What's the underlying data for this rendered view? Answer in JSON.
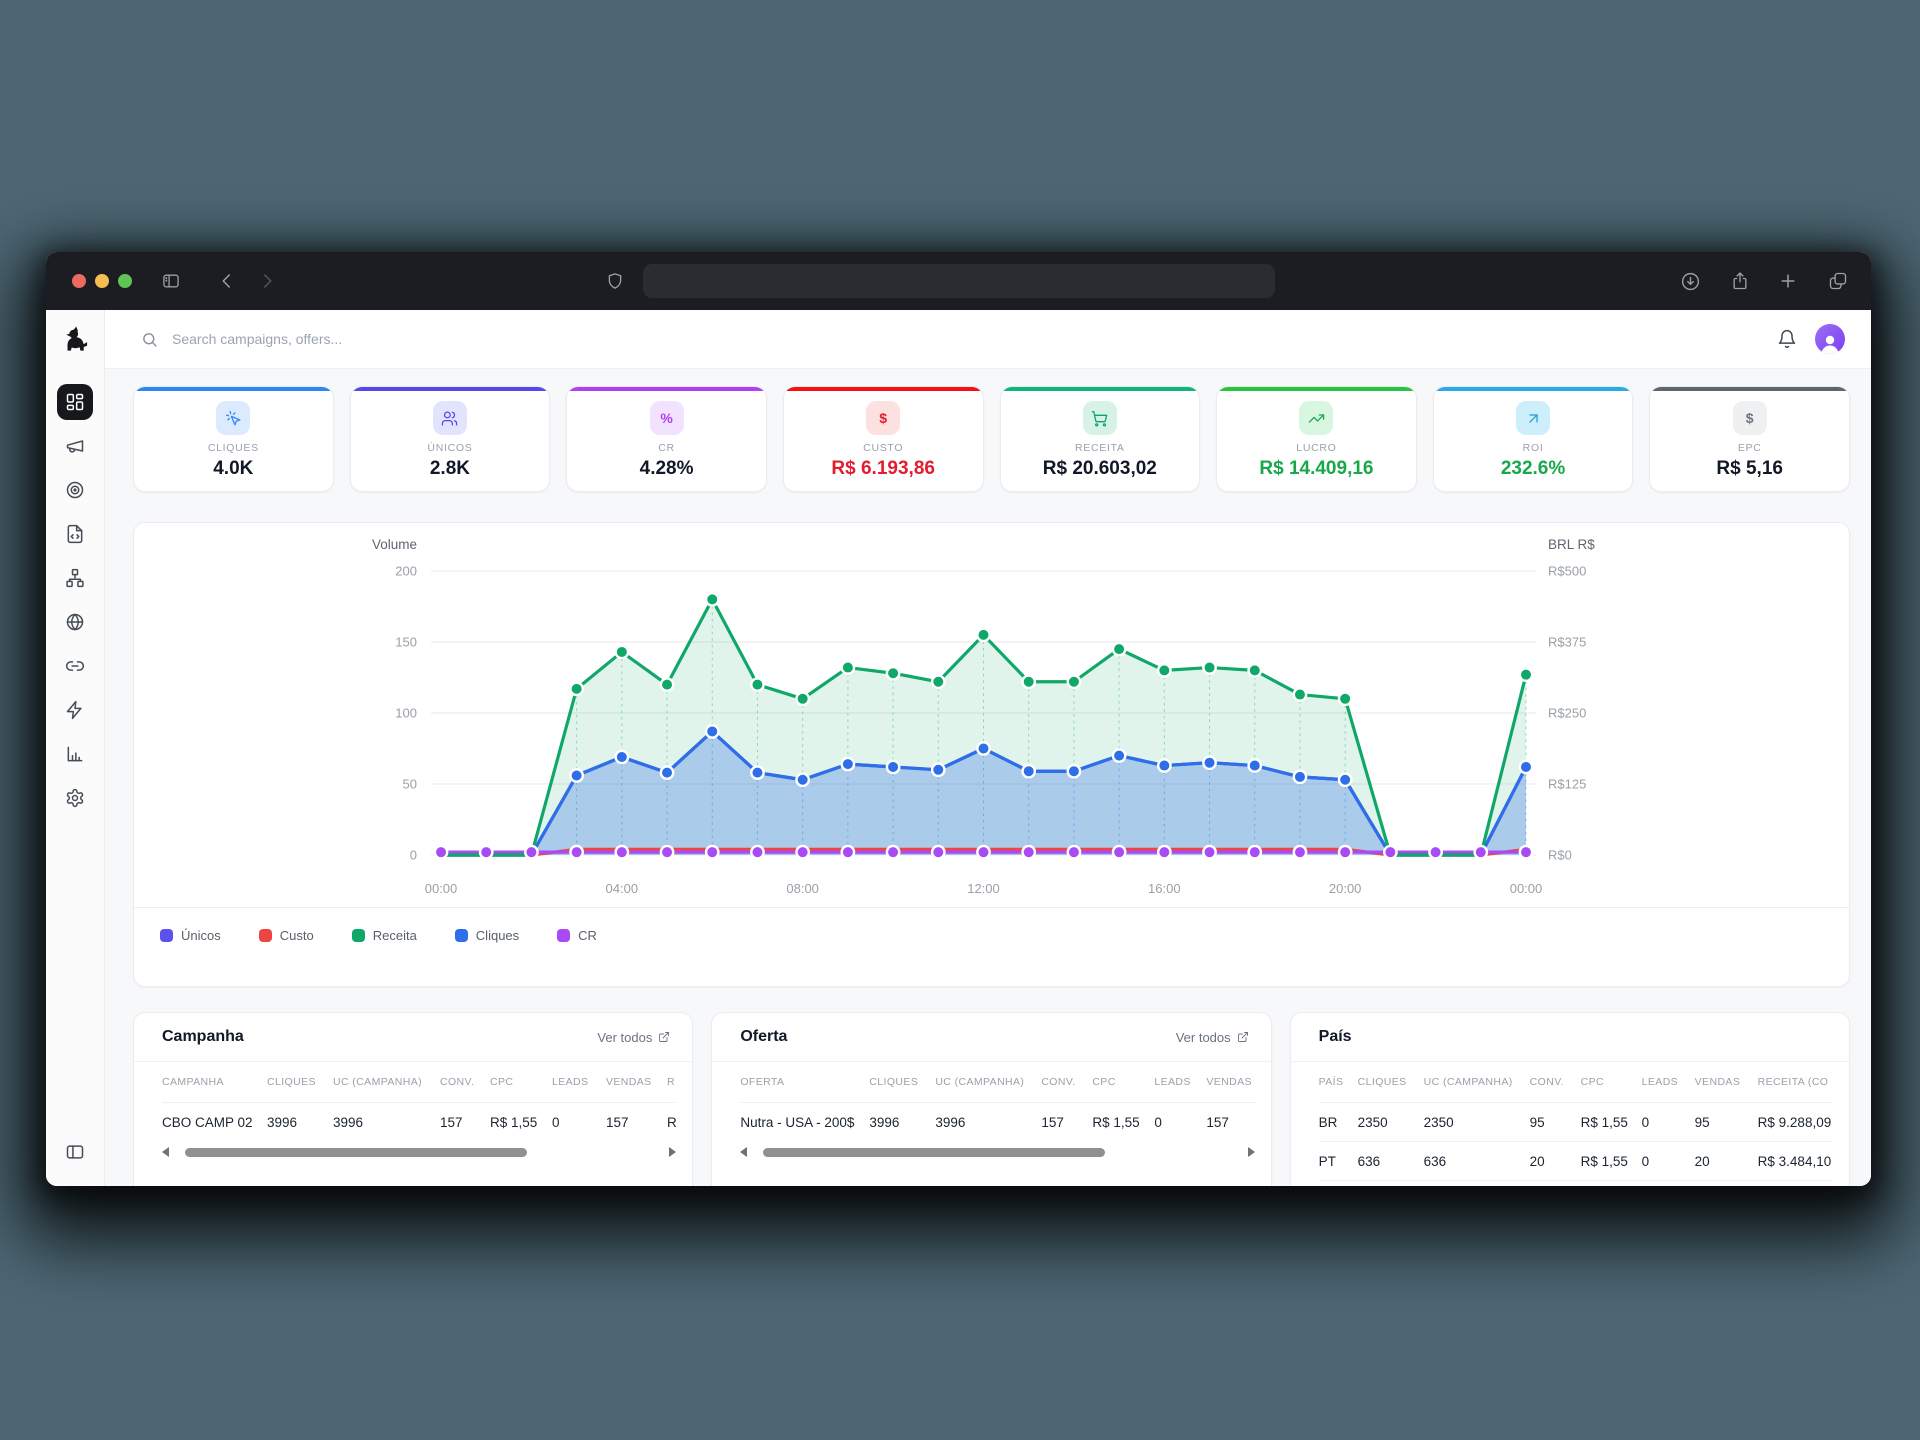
{
  "browser": {
    "traffic_lights": [
      "#ed6a5e",
      "#f4bf4f",
      "#61c555"
    ],
    "url_value": ""
  },
  "sidebar": {
    "items": [
      {
        "icon": "layout-grid",
        "active": true
      },
      {
        "icon": "megaphone",
        "active": false
      },
      {
        "icon": "target",
        "active": false
      },
      {
        "icon": "file-code",
        "active": false
      },
      {
        "icon": "network",
        "active": false
      },
      {
        "icon": "globe",
        "active": false
      },
      {
        "icon": "link",
        "active": false
      },
      {
        "icon": "zap",
        "active": false
      },
      {
        "icon": "bar-chart",
        "active": false
      },
      {
        "icon": "settings",
        "active": false
      }
    ],
    "footer_icon": "panel-left"
  },
  "topbar": {
    "search_placeholder": "Search campaigns, offers..."
  },
  "kpis": [
    {
      "label": "CLIQUES",
      "value": "4.0K",
      "accent": "#2e86f6",
      "chip_bg": "#dbeafe",
      "icon": "cursor-click",
      "icon_color": "#2e86f6",
      "value_color": "#111827"
    },
    {
      "label": "ÚNICOS",
      "value": "2.8K",
      "accent": "#5746ea",
      "chip_bg": "#e2e4fd",
      "icon": "users",
      "icon_color": "#5746ea",
      "value_color": "#111827"
    },
    {
      "label": "CR",
      "value": "4.28%",
      "accent": "#ae3ef7",
      "chip_bg": "#f2e2fe",
      "icon": "percent",
      "icon_color": "#ae3ef7",
      "value_color": "#111827"
    },
    {
      "label": "CUSTO",
      "value": "R$ 6.193,86",
      "accent": "#f31212",
      "chip_bg": "#fde1e1",
      "icon": "dollar",
      "icon_color": "#e11d2e",
      "value_color": "#e11d2e"
    },
    {
      "label": "RECEITA",
      "value": "R$ 20.603,02",
      "accent": "#0db57a",
      "chip_bg": "#d7f3e6",
      "icon": "cart",
      "icon_color": "#0aa56e",
      "value_color": "#111827"
    },
    {
      "label": "LUCRO",
      "value": "R$ 14.409,16",
      "accent": "#27c440",
      "chip_bg": "#d9f6e0",
      "icon": "trend-up",
      "icon_color": "#17a84a",
      "value_color": "#17a84a"
    },
    {
      "label": "ROI",
      "value": "232.6%",
      "accent": "#2aa9e8",
      "chip_bg": "#cdeffc",
      "icon": "arrow-up-right",
      "icon_color": "#1f9bdf",
      "value_color": "#17a84a"
    },
    {
      "label": "EPC",
      "value": "R$ 5,16",
      "accent": "#5f6570",
      "chip_bg": "#eff0f2",
      "icon": "dollar",
      "icon_color": "#6b7280",
      "value_color": "#111827"
    }
  ],
  "chart_data": {
    "type": "area",
    "x_interval": "1h",
    "x_tick_labels": [
      "00:00",
      "04:00",
      "08:00",
      "12:00",
      "16:00",
      "20:00",
      "00:00"
    ],
    "left_axis": {
      "title": "Volume",
      "ticks": [
        200,
        150,
        100,
        50,
        0
      ],
      "range": [
        0,
        200
      ]
    },
    "right_axis": {
      "title": "BRL R$",
      "ticks": [
        "R$500",
        "R$375",
        "R$250",
        "R$125",
        "R$0"
      ],
      "tick_values": [
        500,
        375,
        250,
        125,
        0
      ],
      "range": [
        0,
        500
      ]
    },
    "grid": true,
    "legend_position": "bottom-left",
    "series": [
      {
        "name": "Únicos",
        "color": "#5b51f0",
        "values": [
          0,
          0,
          0,
          56,
          69,
          58,
          87,
          58,
          53,
          64,
          62,
          60,
          75,
          59,
          59,
          70,
          63,
          65,
          63,
          55,
          53,
          0,
          0,
          0,
          62
        ]
      },
      {
        "name": "Custo",
        "color": "#ef4444",
        "values": [
          0,
          0,
          0,
          4,
          4,
          4,
          4,
          4,
          4,
          4,
          4,
          4,
          4,
          4,
          4,
          4,
          4,
          4,
          4,
          4,
          4,
          0,
          0,
          0,
          4
        ]
      },
      {
        "name": "Receita",
        "color": "#10a868",
        "fill": "rgba(16,168,104,0.13)",
        "values": [
          0,
          0,
          0,
          117,
          143,
          120,
          180,
          120,
          110,
          132,
          128,
          122,
          155,
          122,
          122,
          145,
          130,
          132,
          130,
          113,
          110,
          0,
          0,
          0,
          127
        ]
      },
      {
        "name": "Cliques",
        "color": "#2e6ee8",
        "fill": "rgba(46,110,232,0.30)",
        "values": [
          0,
          0,
          0,
          56,
          69,
          58,
          87,
          58,
          53,
          64,
          62,
          60,
          75,
          59,
          59,
          70,
          63,
          65,
          63,
          55,
          53,
          0,
          0,
          0,
          62
        ]
      },
      {
        "name": "CR",
        "color": "#a84bf5",
        "values": [
          2,
          2,
          2,
          2,
          2,
          2,
          2,
          2,
          2,
          2,
          2,
          2,
          2,
          2,
          2,
          2,
          2,
          2,
          2,
          2,
          2,
          2,
          2,
          2,
          2
        ]
      }
    ]
  },
  "tables": [
    {
      "title": "Campanha",
      "link": "Ver todos",
      "columns": [
        "CAMPANHA",
        "CLIQUES",
        "UC (CAMPANHA)",
        "CONV.",
        "CPC",
        "LEADS",
        "VENDAS",
        "R"
      ],
      "rows": [
        [
          "CBO CAMP 02",
          "3996",
          "3996",
          "157",
          "R$ 1,55",
          "0",
          "157",
          "R"
        ]
      ],
      "scrollbar": true
    },
    {
      "title": "Oferta",
      "link": "Ver todos",
      "columns": [
        "OFERTA",
        "CLIQUES",
        "UC (CAMPANHA)",
        "CONV.",
        "CPC",
        "LEADS",
        "VENDAS"
      ],
      "rows": [
        [
          "Nutra - USA - 200$",
          "3996",
          "3996",
          "157",
          "R$ 1,55",
          "0",
          "157"
        ]
      ],
      "scrollbar": true
    },
    {
      "title": "País",
      "link": "",
      "columns": [
        "PAÍS",
        "CLIQUES",
        "UC (CAMPANHA)",
        "CONV.",
        "CPC",
        "LEADS",
        "VENDAS",
        "RECEITA (CO"
      ],
      "rows": [
        [
          "BR",
          "2350",
          "2350",
          "95",
          "R$ 1,55",
          "0",
          "95",
          "R$ 9.288,09"
        ],
        [
          "PT",
          "636",
          "636",
          "20",
          "R$ 1,55",
          "0",
          "20",
          "R$ 3.484,10"
        ]
      ],
      "scrollbar": false
    }
  ]
}
